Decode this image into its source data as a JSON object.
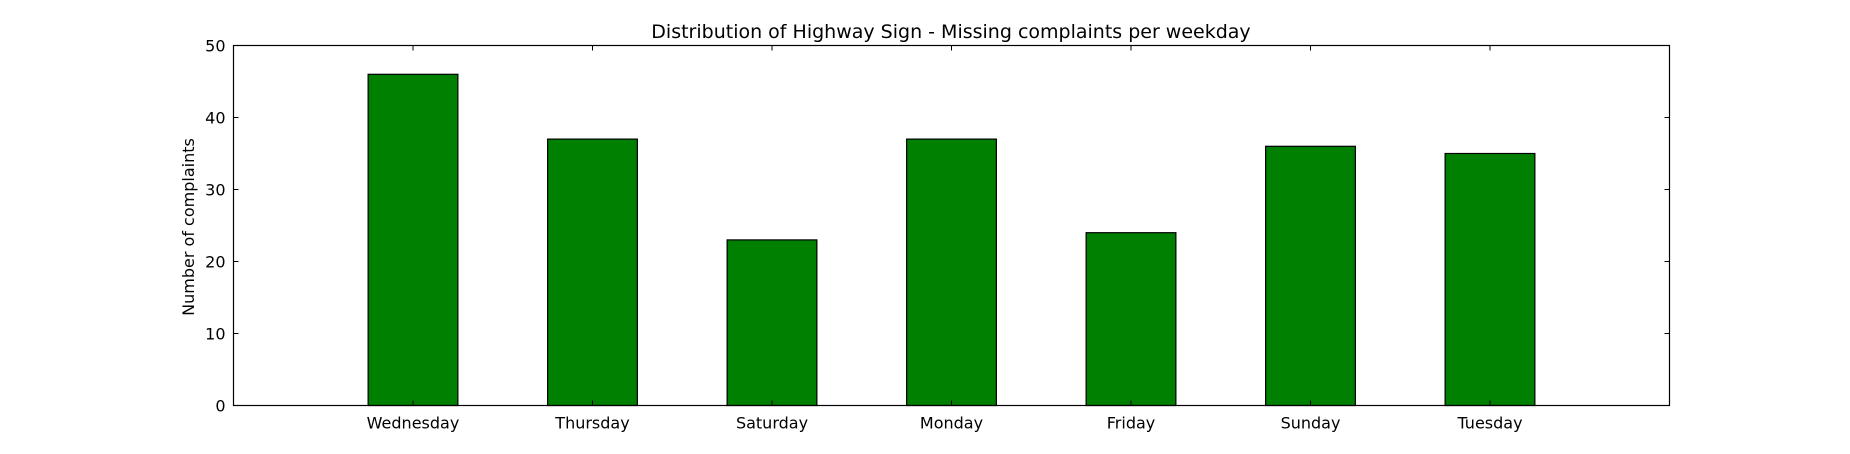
{
  "chart_data": {
    "type": "bar",
    "title": "Distribution of  Highway Sign - Missing complaints per weekday",
    "xlabel": "",
    "ylabel": "Number of complaints",
    "categories": [
      "Wednesday",
      "Thursday",
      "Saturday",
      "Monday",
      "Friday",
      "Sunday",
      "Tuesday"
    ],
    "values": [
      46,
      37,
      23,
      37,
      24,
      36,
      35
    ],
    "ylim": [
      0,
      50
    ],
    "yticks": [
      0,
      10,
      20,
      30,
      40,
      50
    ],
    "grid": false,
    "legend": "none",
    "colors": {
      "bar_fill": "#008000",
      "bar_stroke": "#000000",
      "axes": "#000000",
      "background": "#ffffff"
    }
  }
}
